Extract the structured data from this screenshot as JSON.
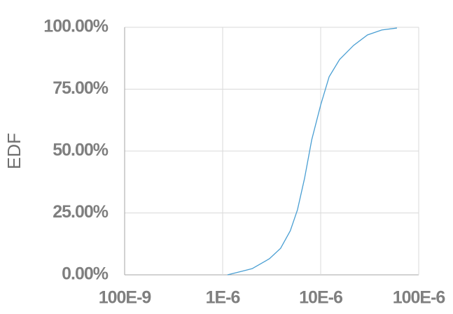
{
  "chart_data": {
    "type": "line",
    "y_label": "EDF",
    "x": [
      1.12e-06,
      1.56e-06,
      2e-06,
      3e-06,
      3.9e-06,
      4.9e-06,
      5.8e-06,
      6.85e-06,
      8.1e-06,
      1e-05,
      1.22e-05,
      1.56e-05,
      2.17e-05,
      3e-05,
      4.2e-05,
      6e-05
    ],
    "values": [
      0,
      1.4,
      2.5,
      6.5,
      10.7,
      17.8,
      26.3,
      39,
      54.5,
      68.6,
      80,
      87,
      92.7,
      96.9,
      98.9,
      99.7
    ],
    "color": "#4a9fd3",
    "xlog": true,
    "xlim": [
      1e-07,
      0.0001
    ],
    "xticks": [
      {
        "value": 1e-07,
        "label": "100E-9"
      },
      {
        "value": 1e-06,
        "label": "1E-6"
      },
      {
        "value": 1e-05,
        "label": "10E-6"
      },
      {
        "value": 0.0001,
        "label": "100E-6"
      }
    ],
    "ylim": [
      0,
      100
    ],
    "yticks": [
      {
        "value": 0,
        "label": "0.00%"
      },
      {
        "value": 25,
        "label": "25.00%"
      },
      {
        "value": 50,
        "label": "50.00%"
      },
      {
        "value": 75,
        "label": "75.00%"
      },
      {
        "value": 100,
        "label": "100.00%"
      }
    ],
    "grid": true
  }
}
